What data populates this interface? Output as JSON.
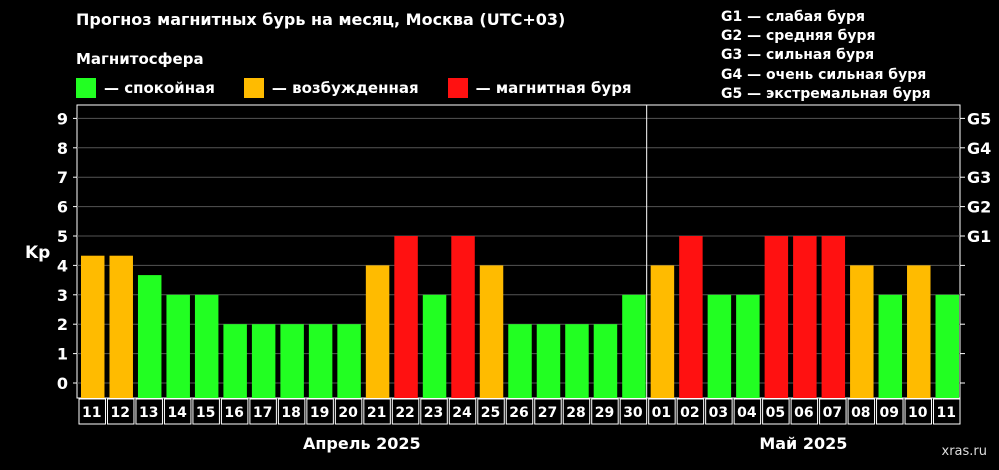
{
  "chart_data": {
    "type": "bar",
    "title": "Прогноз магнитных бурь на месяц, Москва (UTC+03)",
    "ylabel": "Kp",
    "ylim": [
      0,
      9
    ],
    "yticks": [
      "0",
      "1",
      "2",
      "3",
      "4",
      "5",
      "6",
      "7",
      "8",
      "9"
    ],
    "right_axis_labels": [
      {
        "kp": 5,
        "label": "G1"
      },
      {
        "kp": 6,
        "label": "G2"
      },
      {
        "kp": 7,
        "label": "G3"
      },
      {
        "kp": 8,
        "label": "G4"
      },
      {
        "kp": 9,
        "label": "G5"
      }
    ],
    "categories": [
      "11",
      "12",
      "13",
      "14",
      "15",
      "16",
      "17",
      "18",
      "19",
      "20",
      "21",
      "22",
      "23",
      "24",
      "25",
      "26",
      "27",
      "28",
      "29",
      "30",
      "01",
      "02",
      "03",
      "04",
      "05",
      "06",
      "07",
      "08",
      "09",
      "10",
      "11"
    ],
    "values": [
      4.33,
      4.33,
      3.67,
      3,
      3,
      2,
      2,
      2,
      2,
      2,
      4,
      5,
      3,
      5,
      4,
      2,
      2,
      2,
      2,
      3,
      4,
      5,
      3,
      3,
      5,
      5,
      5,
      4,
      3,
      4,
      3
    ],
    "levels": [
      "excited",
      "excited",
      "quiet",
      "quiet",
      "quiet",
      "quiet",
      "quiet",
      "quiet",
      "quiet",
      "quiet",
      "excited",
      "storm",
      "quiet",
      "storm",
      "excited",
      "quiet",
      "quiet",
      "quiet",
      "quiet",
      "quiet",
      "excited",
      "storm",
      "quiet",
      "quiet",
      "storm",
      "storm",
      "storm",
      "excited",
      "quiet",
      "excited",
      "quiet"
    ],
    "month_groups": [
      {
        "label": "Апрель 2025",
        "count": 20
      },
      {
        "label": "Май 2025",
        "count": 11
      }
    ],
    "grid": true
  },
  "legend": {
    "title": "Магнитосфера",
    "items": [
      {
        "key": "quiet",
        "label": "— спокойная",
        "color": "#22ff22"
      },
      {
        "key": "excited",
        "label": "— возбужденная",
        "color": "#ffbb00"
      },
      {
        "key": "storm",
        "label": "— магнитная буря",
        "color": "#ff1111"
      }
    ]
  },
  "g_scale": [
    "G1 — слабая буря",
    "G2 — средняя буря",
    "G3 — сильная буря",
    "G4 — очень сильная буря",
    "G5 — экстремальная буря"
  ],
  "watermark": "xras.ru"
}
